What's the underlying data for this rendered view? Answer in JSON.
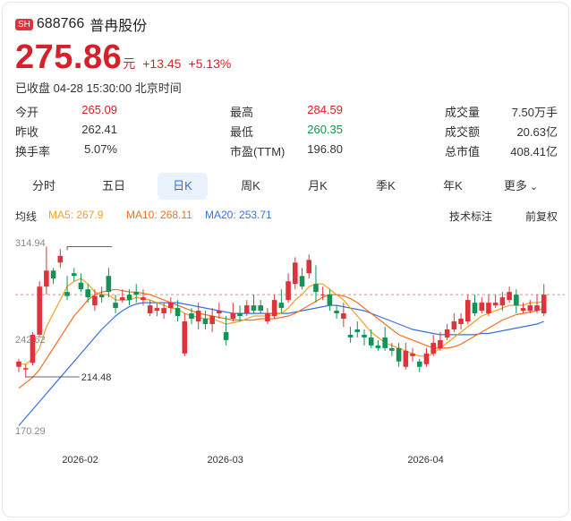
{
  "header": {
    "exchange_badge": "SH",
    "code": "688766",
    "name": "普冉股份"
  },
  "quote": {
    "price": "275.86",
    "unit": "元",
    "change": "+13.45",
    "change_pct": "+5.13%",
    "status": "已收盘 04-28 15:30:00 北京时间"
  },
  "stats": [
    {
      "label": "今开",
      "value": "265.09",
      "tone": "up"
    },
    {
      "label": "最高",
      "value": "284.59",
      "tone": "up"
    },
    {
      "label": "成交量",
      "value": "7.50万手",
      "tone": "flat"
    },
    {
      "label": "昨收",
      "value": "262.41",
      "tone": "flat"
    },
    {
      "label": "最低",
      "value": "260.35",
      "tone": "down"
    },
    {
      "label": "成交额",
      "value": "20.63亿",
      "tone": "flat"
    },
    {
      "label": "换手率",
      "value": "5.07%",
      "tone": "flat"
    },
    {
      "label": "市盈(TTM)",
      "value": "196.80",
      "tone": "flat"
    },
    {
      "label": "总市值",
      "value": "408.41亿",
      "tone": "flat"
    }
  ],
  "tabs": [
    {
      "label": "分时"
    },
    {
      "label": "五日"
    },
    {
      "label": "日K",
      "active": true
    },
    {
      "label": "周K"
    },
    {
      "label": "月K"
    },
    {
      "label": "季K"
    },
    {
      "label": "年K"
    },
    {
      "label": "更多"
    }
  ],
  "ma_legend": {
    "title": "均线",
    "ma5": "MA5: 267.9",
    "ma10": "MA10: 268.11",
    "ma20": "MA20: 253.71",
    "tech": "技术标注",
    "adjust": "前复权"
  },
  "colors": {
    "up": "#e0323b",
    "down": "#15925a",
    "ma5": "#f0a020",
    "ma10": "#f07020",
    "ma20": "#3a70d8",
    "accent": "#2f6fd6"
  },
  "chart_data": {
    "type": "candlestick",
    "y_labels": [
      "314.94",
      "242.62",
      "170.29"
    ],
    "ylim": [
      170.29,
      314.94
    ],
    "max_marker": "314.94",
    "min_marker": "214.48",
    "x_labels": [
      "2026-02",
      "2026-03",
      "2026-04"
    ],
    "candles": [
      [
        222,
        226,
        218,
        228
      ],
      [
        220,
        221,
        214,
        224
      ],
      [
        225,
        246,
        223,
        248
      ],
      [
        246,
        282,
        244,
        286
      ],
      [
        282,
        294,
        276,
        312
      ],
      [
        294,
        288,
        284,
        296
      ],
      [
        300,
        305,
        296,
        310
      ],
      [
        278,
        275,
        272,
        290
      ],
      [
        292,
        290,
        286,
        296
      ],
      [
        285,
        280,
        278,
        292
      ],
      [
        280,
        274,
        270,
        284
      ],
      [
        268,
        275,
        264,
        280
      ],
      [
        276,
        274,
        270,
        282
      ],
      [
        290,
        278,
        274,
        296
      ],
      [
        270,
        266,
        262,
        276
      ],
      [
        272,
        274,
        270,
        280
      ],
      [
        276,
        272,
        268,
        280
      ],
      [
        278,
        276,
        270,
        284
      ],
      [
        272,
        274,
        268,
        280
      ],
      [
        262,
        268,
        260,
        272
      ],
      [
        264,
        266,
        260,
        270
      ],
      [
        262,
        266,
        258,
        270
      ],
      [
        266,
        270,
        262,
        274
      ],
      [
        266,
        260,
        256,
        272
      ],
      [
        232,
        256,
        230,
        262
      ],
      [
        262,
        258,
        254,
        266
      ],
      [
        256,
        264,
        250,
        270
      ],
      [
        258,
        254,
        250,
        264
      ],
      [
        254,
        260,
        248,
        266
      ],
      [
        262,
        264,
        258,
        270
      ],
      [
        248,
        242,
        238,
        260
      ],
      [
        258,
        262,
        256,
        270
      ],
      [
        262,
        260,
        256,
        268
      ],
      [
        262,
        268,
        260,
        272
      ],
      [
        268,
        264,
        262,
        276
      ],
      [
        268,
        264,
        262,
        272
      ],
      [
        256,
        262,
        254,
        266
      ],
      [
        260,
        272,
        258,
        276
      ],
      [
        270,
        266,
        262,
        280
      ],
      [
        272,
        286,
        270,
        292
      ],
      [
        284,
        300,
        280,
        304
      ],
      [
        290,
        282,
        280,
        296
      ],
      [
        292,
        302,
        288,
        306
      ],
      [
        284,
        278,
        270,
        298
      ],
      [
        276,
        276,
        272,
        282
      ],
      [
        276,
        268,
        264,
        280
      ],
      [
        264,
        262,
        258,
        268
      ],
      [
        258,
        262,
        252,
        270
      ],
      [
        246,
        244,
        240,
        252
      ],
      [
        250,
        248,
        244,
        256
      ],
      [
        246,
        244,
        238,
        250
      ],
      [
        244,
        238,
        236,
        250
      ],
      [
        238,
        236,
        234,
        242
      ],
      [
        244,
        236,
        234,
        252
      ],
      [
        236,
        234,
        230,
        240
      ],
      [
        236,
        226,
        222,
        240
      ],
      [
        222,
        234,
        220,
        240
      ],
      [
        230,
        232,
        226,
        236
      ],
      [
        226,
        222,
        218,
        228
      ],
      [
        224,
        232,
        222,
        236
      ],
      [
        232,
        240,
        230,
        246
      ],
      [
        236,
        242,
        234,
        248
      ],
      [
        244,
        250,
        242,
        254
      ],
      [
        250,
        256,
        248,
        262
      ],
      [
        254,
        258,
        250,
        262
      ],
      [
        256,
        272,
        254,
        276
      ],
      [
        270,
        262,
        260,
        276
      ],
      [
        264,
        270,
        262,
        274
      ],
      [
        262,
        270,
        260,
        276
      ],
      [
        268,
        270,
        266,
        276
      ],
      [
        268,
        274,
        264,
        278
      ],
      [
        272,
        278,
        270,
        282
      ],
      [
        276,
        268,
        262,
        280
      ],
      [
        264,
        266,
        262,
        270
      ],
      [
        264,
        268,
        262,
        272
      ],
      [
        264,
        268,
        262,
        276
      ],
      [
        262,
        276,
        260,
        284
      ]
    ],
    "ma5": [
      224,
      224,
      228,
      236,
      252,
      262,
      272,
      282,
      286,
      288,
      284,
      278,
      276,
      276,
      272,
      272,
      272,
      274,
      273,
      272,
      270,
      268,
      266,
      265,
      262,
      260,
      259,
      258,
      258,
      256,
      254,
      255,
      256,
      258,
      260,
      260,
      260,
      261,
      262,
      266,
      272,
      276,
      282,
      284,
      284,
      280,
      276,
      272,
      266,
      260,
      254,
      248,
      244,
      240,
      238,
      236,
      234,
      232,
      230,
      230,
      232,
      236,
      240,
      244,
      248,
      252,
      256,
      260,
      262,
      264,
      266,
      268,
      268,
      268,
      270,
      270,
      271
    ],
    "ma10": [
      206,
      210,
      214,
      220,
      228,
      236,
      244,
      252,
      260,
      266,
      272,
      276,
      278,
      279,
      280,
      279,
      278,
      278,
      277,
      276,
      274,
      272,
      270,
      268,
      266,
      264,
      262,
      261,
      260,
      259,
      258,
      257,
      257,
      257,
      257,
      258,
      258,
      258,
      259,
      260,
      262,
      265,
      268,
      271,
      274,
      276,
      276,
      275,
      273,
      270,
      266,
      262,
      258,
      254,
      250,
      246,
      244,
      242,
      240,
      238,
      236,
      236,
      236,
      237,
      239,
      242,
      245,
      248,
      251,
      254,
      257,
      259,
      261,
      262,
      263,
      264,
      266
    ],
    "ma20": [
      178,
      184,
      190,
      196,
      202,
      208,
      214,
      220,
      226,
      232,
      238,
      244,
      250,
      255,
      260,
      264,
      267,
      269,
      270,
      270,
      270,
      270,
      270,
      270,
      269,
      268,
      267,
      266,
      265,
      264,
      263,
      262,
      262,
      262,
      262,
      262,
      262,
      262,
      262,
      262,
      263,
      264,
      265,
      266,
      267,
      268,
      268,
      267,
      266,
      265,
      264,
      262,
      260,
      258,
      256,
      254,
      252,
      250,
      249,
      248,
      247,
      246,
      246,
      246,
      246,
      246,
      246,
      247,
      247,
      248,
      249,
      250,
      251,
      252,
      253,
      254,
      256
    ]
  }
}
